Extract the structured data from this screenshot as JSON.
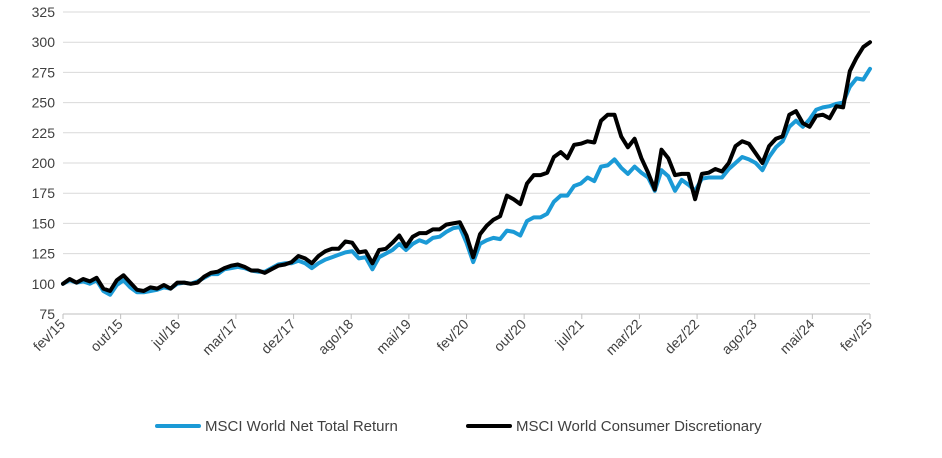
{
  "chart_data": {
    "type": "line",
    "title": "",
    "xlabel": "",
    "ylabel": "",
    "ylim": [
      75,
      325
    ],
    "y_ticks": [
      75,
      100,
      125,
      150,
      175,
      200,
      225,
      250,
      275,
      300,
      325
    ],
    "x_tick_labels": [
      "fev/15",
      "out/15",
      "jul/16",
      "mar/17",
      "dez/17",
      "ago/18",
      "mai/19",
      "fev/20",
      "out/20",
      "jul/21",
      "mar/22",
      "dez/22",
      "ago/23",
      "mai/24",
      "fev/25"
    ],
    "grid": "horizontal",
    "legend_position": "bottom",
    "series": [
      {
        "name": "MSCI World Net Total Return",
        "color": "#1b9ad6",
        "points": [
          [
            0,
            100
          ],
          [
            1,
            103
          ],
          [
            2,
            101
          ],
          [
            3,
            102
          ],
          [
            4,
            100
          ],
          [
            5,
            103
          ],
          [
            6,
            94
          ],
          [
            7,
            91
          ],
          [
            8,
            99
          ],
          [
            9,
            103
          ],
          [
            10,
            97
          ],
          [
            11,
            93
          ],
          [
            12,
            93
          ],
          [
            13,
            94
          ],
          [
            14,
            95
          ],
          [
            15,
            97
          ],
          [
            16,
            96
          ],
          [
            17,
            100
          ],
          [
            18,
            101
          ],
          [
            19,
            100
          ],
          [
            20,
            102
          ],
          [
            21,
            105
          ],
          [
            22,
            108
          ],
          [
            23,
            108
          ],
          [
            24,
            112
          ],
          [
            25,
            113
          ],
          [
            26,
            114
          ],
          [
            27,
            113
          ],
          [
            28,
            111
          ],
          [
            29,
            110
          ],
          [
            30,
            110
          ],
          [
            31,
            113
          ],
          [
            32,
            116
          ],
          [
            33,
            117
          ],
          [
            34,
            117
          ],
          [
            35,
            119
          ],
          [
            36,
            117
          ],
          [
            37,
            113
          ],
          [
            38,
            117
          ],
          [
            39,
            120
          ],
          [
            40,
            122
          ],
          [
            41,
            124
          ],
          [
            42,
            126
          ],
          [
            43,
            127
          ],
          [
            44,
            121
          ],
          [
            45,
            122
          ],
          [
            46,
            112
          ],
          [
            47,
            122
          ],
          [
            48,
            125
          ],
          [
            49,
            128
          ],
          [
            50,
            133
          ],
          [
            51,
            128
          ],
          [
            52,
            133
          ],
          [
            53,
            136
          ],
          [
            54,
            134
          ],
          [
            55,
            138
          ],
          [
            56,
            139
          ],
          [
            57,
            143
          ],
          [
            58,
            146
          ],
          [
            59,
            147
          ],
          [
            60,
            134
          ],
          [
            61,
            118
          ],
          [
            62,
            133
          ],
          [
            63,
            136
          ],
          [
            64,
            138
          ],
          [
            65,
            137
          ],
          [
            66,
            144
          ],
          [
            67,
            143
          ],
          [
            68,
            140
          ],
          [
            69,
            152
          ],
          [
            70,
            155
          ],
          [
            71,
            155
          ],
          [
            72,
            158
          ],
          [
            73,
            168
          ],
          [
            74,
            173
          ],
          [
            75,
            173
          ],
          [
            76,
            181
          ],
          [
            77,
            183
          ],
          [
            78,
            188
          ],
          [
            79,
            185
          ],
          [
            80,
            197
          ],
          [
            81,
            198
          ],
          [
            82,
            203
          ],
          [
            83,
            196
          ],
          [
            84,
            191
          ],
          [
            85,
            197
          ],
          [
            86,
            192
          ],
          [
            87,
            188
          ],
          [
            88,
            177
          ],
          [
            89,
            194
          ],
          [
            90,
            189
          ],
          [
            91,
            177
          ],
          [
            92,
            186
          ],
          [
            93,
            182
          ],
          [
            94,
            177
          ],
          [
            95,
            187
          ],
          [
            96,
            188
          ],
          [
            97,
            188
          ],
          [
            98,
            188
          ],
          [
            99,
            195
          ],
          [
            100,
            200
          ],
          [
            101,
            205
          ],
          [
            102,
            203
          ],
          [
            103,
            200
          ],
          [
            104,
            194
          ],
          [
            105,
            205
          ],
          [
            106,
            213
          ],
          [
            107,
            218
          ],
          [
            108,
            230
          ],
          [
            109,
            235
          ],
          [
            110,
            230
          ],
          [
            111,
            236
          ],
          [
            112,
            244
          ],
          [
            113,
            246
          ],
          [
            114,
            247
          ],
          [
            115,
            249
          ],
          [
            116,
            250
          ],
          [
            117,
            263
          ],
          [
            118,
            270
          ],
          [
            119,
            269
          ],
          [
            120,
            278
          ]
        ]
      },
      {
        "name": "MSCI World Consumer Discretionary",
        "color": "#000000",
        "points": [
          [
            0,
            100
          ],
          [
            1,
            104
          ],
          [
            2,
            101
          ],
          [
            3,
            104
          ],
          [
            4,
            102
          ],
          [
            5,
            105
          ],
          [
            6,
            96
          ],
          [
            7,
            94
          ],
          [
            8,
            103
          ],
          [
            9,
            107
          ],
          [
            10,
            101
          ],
          [
            11,
            95
          ],
          [
            12,
            94
          ],
          [
            13,
            97
          ],
          [
            14,
            96
          ],
          [
            15,
            99
          ],
          [
            16,
            96
          ],
          [
            17,
            101
          ],
          [
            18,
            101
          ],
          [
            19,
            100
          ],
          [
            20,
            101
          ],
          [
            21,
            106
          ],
          [
            22,
            109
          ],
          [
            23,
            110
          ],
          [
            24,
            113
          ],
          [
            25,
            115
          ],
          [
            26,
            116
          ],
          [
            27,
            114
          ],
          [
            28,
            111
          ],
          [
            29,
            111
          ],
          [
            30,
            109
          ],
          [
            31,
            112
          ],
          [
            32,
            115
          ],
          [
            33,
            116
          ],
          [
            34,
            118
          ],
          [
            35,
            123
          ],
          [
            36,
            121
          ],
          [
            37,
            117
          ],
          [
            38,
            123
          ],
          [
            39,
            127
          ],
          [
            40,
            129
          ],
          [
            41,
            129
          ],
          [
            42,
            135
          ],
          [
            43,
            134
          ],
          [
            44,
            126
          ],
          [
            45,
            127
          ],
          [
            46,
            117
          ],
          [
            47,
            128
          ],
          [
            48,
            129
          ],
          [
            49,
            134
          ],
          [
            50,
            140
          ],
          [
            51,
            131
          ],
          [
            52,
            139
          ],
          [
            53,
            142
          ],
          [
            54,
            142
          ],
          [
            55,
            145
          ],
          [
            56,
            145
          ],
          [
            57,
            149
          ],
          [
            58,
            150
          ],
          [
            59,
            151
          ],
          [
            60,
            140
          ],
          [
            61,
            122
          ],
          [
            62,
            141
          ],
          [
            63,
            148
          ],
          [
            64,
            153
          ],
          [
            65,
            156
          ],
          [
            66,
            173
          ],
          [
            67,
            170
          ],
          [
            68,
            166
          ],
          [
            69,
            183
          ],
          [
            70,
            190
          ],
          [
            71,
            190
          ],
          [
            72,
            192
          ],
          [
            73,
            205
          ],
          [
            74,
            209
          ],
          [
            75,
            204
          ],
          [
            76,
            215
          ],
          [
            77,
            216
          ],
          [
            78,
            218
          ],
          [
            79,
            217
          ],
          [
            80,
            235
          ],
          [
            81,
            240
          ],
          [
            82,
            240
          ],
          [
            83,
            222
          ],
          [
            84,
            213
          ],
          [
            85,
            220
          ],
          [
            86,
            204
          ],
          [
            87,
            192
          ],
          [
            88,
            178
          ],
          [
            89,
            211
          ],
          [
            90,
            204
          ],
          [
            91,
            190
          ],
          [
            92,
            191
          ],
          [
            93,
            191
          ],
          [
            94,
            170
          ],
          [
            95,
            191
          ],
          [
            96,
            192
          ],
          [
            97,
            195
          ],
          [
            98,
            193
          ],
          [
            99,
            200
          ],
          [
            100,
            214
          ],
          [
            101,
            218
          ],
          [
            102,
            216
          ],
          [
            103,
            208
          ],
          [
            104,
            200
          ],
          [
            105,
            214
          ],
          [
            106,
            220
          ],
          [
            107,
            222
          ],
          [
            108,
            240
          ],
          [
            109,
            243
          ],
          [
            110,
            233
          ],
          [
            111,
            230
          ],
          [
            112,
            239
          ],
          [
            113,
            240
          ],
          [
            114,
            237
          ],
          [
            115,
            247
          ],
          [
            116,
            246
          ],
          [
            117,
            276
          ],
          [
            118,
            287
          ],
          [
            119,
            296
          ],
          [
            120,
            300
          ]
        ]
      }
    ]
  }
}
